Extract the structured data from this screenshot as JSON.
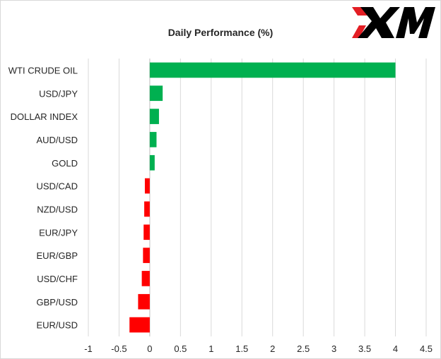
{
  "brand": {
    "logo_text": "XM",
    "colors": {
      "red": "#e31e24",
      "black": "#000000"
    }
  },
  "colors": {
    "positive": "#00b050",
    "negative": "#ff0000",
    "gridline": "#d9d9d9",
    "axis": "#bfbfbf",
    "text": "#262626"
  },
  "chart_data": {
    "type": "bar",
    "orientation": "horizontal",
    "title": "Daily Performance (%)",
    "xlabel": "",
    "ylabel": "",
    "categories": [
      "WTI CRUDE OIL",
      "USD/JPY",
      "DOLLAR INDEX",
      "AUD/USD",
      "GOLD",
      "USD/CAD",
      "NZD/USD",
      "EUR/JPY",
      "EUR/GBP",
      "USD/CHF",
      "GBP/USD",
      "EUR/USD"
    ],
    "values": [
      4.0,
      0.21,
      0.15,
      0.11,
      0.08,
      -0.08,
      -0.09,
      -0.1,
      -0.11,
      -0.13,
      -0.19,
      -0.33
    ],
    "xlim": [
      -1,
      4.5
    ],
    "xticks": [
      -1,
      -0.5,
      0,
      0.5,
      1,
      1.5,
      2,
      2.5,
      3,
      3.5,
      4,
      4.5
    ],
    "xtick_labels": [
      "-1",
      "-0.5",
      "0",
      "0.5",
      "1",
      "1.5",
      "2",
      "2.5",
      "3",
      "3.5",
      "4",
      "4.5"
    ],
    "grid": true,
    "legend": "none",
    "positive_color": "#00b050",
    "negative_color": "#ff0000"
  }
}
